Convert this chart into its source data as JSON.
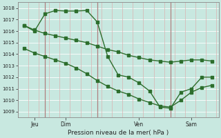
{
  "xlabel": "Pression niveau de la mer( hPa )",
  "bg_color": "#c8e8e0",
  "line_color": "#2d6e2d",
  "grid_color_h": "#ffffff",
  "grid_color_v": "#dbb0b0",
  "ylim": [
    1008.5,
    1018.5
  ],
  "yticks": [
    1009,
    1010,
    1011,
    1012,
    1013,
    1014,
    1015,
    1016,
    1017,
    1018
  ],
  "xlim": [
    -0.3,
    9.3
  ],
  "x_tick_positions": [
    0.5,
    2.0,
    5.5,
    8.0
  ],
  "x_tick_labels": [
    "Jeu",
    "Dim",
    "Ven",
    "Sam"
  ],
  "x_vlines": [
    1.0,
    3.5,
    7.0
  ],
  "line1_x": [
    0.0,
    0.5,
    1.0,
    1.5,
    2.0,
    2.5,
    3.0,
    3.5,
    4.0,
    4.5,
    5.0,
    5.5,
    6.0,
    6.5,
    7.0,
    7.5,
    8.0,
    8.5,
    9.0
  ],
  "line1_y": [
    1016.5,
    1016.1,
    1015.8,
    1015.6,
    1015.4,
    1015.2,
    1015.0,
    1014.7,
    1014.4,
    1014.2,
    1013.9,
    1013.7,
    1013.5,
    1013.4,
    1013.3,
    1013.4,
    1013.5,
    1013.5,
    1013.4
  ],
  "line2_x": [
    0.0,
    0.5,
    1.0,
    1.5,
    2.0,
    2.5,
    3.0,
    3.5,
    4.0,
    4.5,
    5.0,
    5.5,
    6.0,
    6.5,
    7.0,
    7.5,
    8.0,
    8.5,
    9.0
  ],
  "line2_y": [
    1016.5,
    1016.0,
    1017.5,
    1017.8,
    1017.75,
    1017.75,
    1017.8,
    1016.8,
    1013.8,
    1012.2,
    1012.0,
    1011.5,
    1010.8,
    1009.4,
    1009.3,
    1010.7,
    1011.0,
    1012.0,
    1012.0
  ],
  "line3_x": [
    0.0,
    0.5,
    1.0,
    1.5,
    2.0,
    2.5,
    3.0,
    3.5,
    4.0,
    4.5,
    5.0,
    5.5,
    6.0,
    6.5,
    7.0,
    7.5,
    8.0,
    8.5,
    9.0
  ],
  "line3_y": [
    1014.5,
    1014.1,
    1013.8,
    1013.5,
    1013.2,
    1012.8,
    1012.3,
    1011.7,
    1011.2,
    1010.8,
    1010.5,
    1010.1,
    1009.8,
    1009.5,
    1009.4,
    1010.0,
    1010.7,
    1011.1,
    1011.3
  ],
  "marker_size": 2.5,
  "line_width": 1.0
}
